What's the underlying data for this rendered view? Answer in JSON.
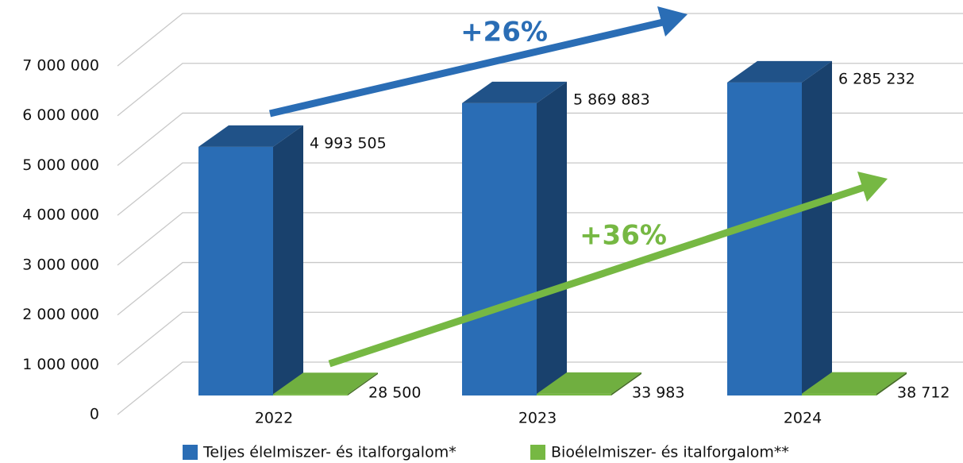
{
  "chart_data": {
    "type": "bar3d",
    "categories": [
      "2022",
      "2023",
      "2024"
    ],
    "series": [
      {
        "name": "Teljes élelmiszer- és italforgalom*",
        "color": "#2a6db5",
        "values": [
          4993505,
          5869883,
          6285232
        ],
        "value_labels": [
          "4 993 505",
          "5 869 883",
          "6 285 232"
        ]
      },
      {
        "name": "Bioélelmiszer- és italforgalom**",
        "color": "#76b843",
        "values": [
          28500,
          33983,
          38712
        ],
        "value_labels": [
          "28 500",
          "33 983",
          "38 712"
        ]
      }
    ],
    "ylim": [
      0,
      7000000
    ],
    "yticks": [
      0,
      {
        "value": 1000000,
        "label": "1 000 000"
      },
      {
        "value": 2000000,
        "label": "2 000 000"
      },
      {
        "value": 3000000,
        "label": "3 000 000"
      },
      {
        "value": 4000000,
        "label": "4 000 000"
      },
      {
        "value": 5000000,
        "label": "5 000 000"
      },
      {
        "value": 6000000,
        "label": "6 000 000"
      },
      {
        "value": 7000000,
        "label": "7 000 000"
      }
    ],
    "grid": true,
    "annotations": [
      "+26%",
      "+36%"
    ]
  }
}
